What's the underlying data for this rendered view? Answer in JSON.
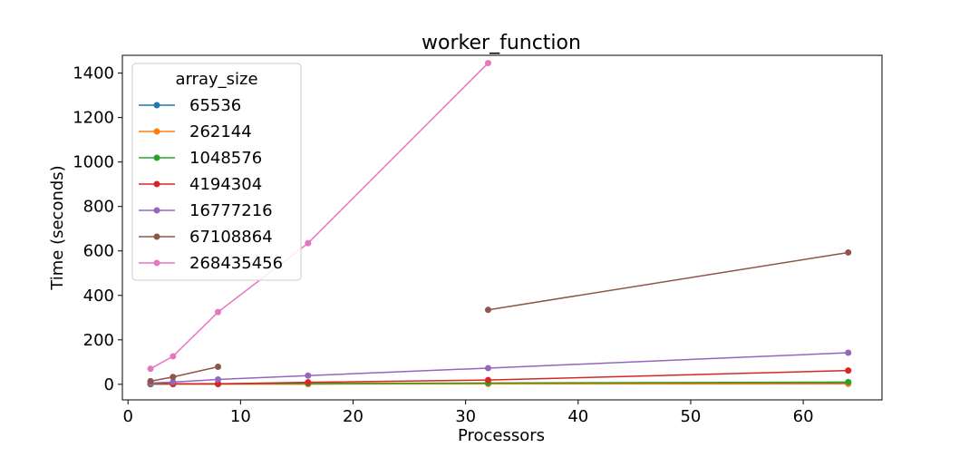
{
  "chart_data": {
    "type": "line",
    "title": "worker_function",
    "xlabel": "Processors",
    "ylabel": "Time (seconds)",
    "xlim": [
      -0.5,
      67
    ],
    "ylim": [
      -70,
      1480
    ],
    "xticks": [
      0,
      10,
      20,
      30,
      40,
      50,
      60
    ],
    "yticks": [
      0,
      200,
      400,
      600,
      800,
      1000,
      1200,
      1400
    ],
    "grid": false,
    "legend": {
      "title": "array_size",
      "placement": "upper-left"
    },
    "series": [
      {
        "name": "65536",
        "color": "#1f77b4",
        "points": [
          [
            2,
            0.5
          ],
          [
            4,
            0.5
          ],
          [
            8,
            1
          ],
          [
            16,
            2
          ],
          [
            32,
            4
          ],
          [
            64,
            6
          ]
        ]
      },
      {
        "name": "262144",
        "color": "#ff7f0e",
        "points": [
          [
            2,
            1
          ],
          [
            4,
            1
          ],
          [
            8,
            1
          ],
          [
            16,
            1
          ],
          [
            32,
            2
          ],
          [
            64,
            2
          ]
        ]
      },
      {
        "name": "1048576",
        "color": "#2ca02c",
        "points": [
          [
            2,
            1.5
          ],
          [
            4,
            2
          ],
          [
            8,
            3
          ],
          [
            16,
            4
          ],
          [
            32,
            6
          ],
          [
            64,
            10
          ]
        ]
      },
      {
        "name": "4194304",
        "color": "#d62728",
        "points": [
          [
            2,
            4
          ],
          [
            4,
            3
          ],
          [
            8,
            2
          ],
          [
            16,
            9
          ],
          [
            32,
            19
          ],
          [
            64,
            62
          ]
        ]
      },
      {
        "name": "16777216",
        "color": "#9467bd",
        "points": [
          [
            2,
            6
          ],
          [
            4,
            10
          ],
          [
            8,
            22
          ],
          [
            16,
            39
          ],
          [
            32,
            73
          ],
          [
            64,
            142
          ]
        ]
      },
      {
        "name": "67108864",
        "color": "#8c564b",
        "points": [
          [
            2,
            14
          ],
          [
            4,
            33
          ],
          [
            8,
            79
          ],
          [
            16,
            null
          ],
          [
            32,
            335
          ],
          [
            64,
            593
          ]
        ]
      },
      {
        "name": "268435456",
        "color": "#e377c2",
        "points": [
          [
            2,
            70
          ],
          [
            4,
            126
          ],
          [
            8,
            325
          ],
          [
            16,
            635
          ],
          [
            32,
            1445
          ]
        ]
      }
    ]
  }
}
